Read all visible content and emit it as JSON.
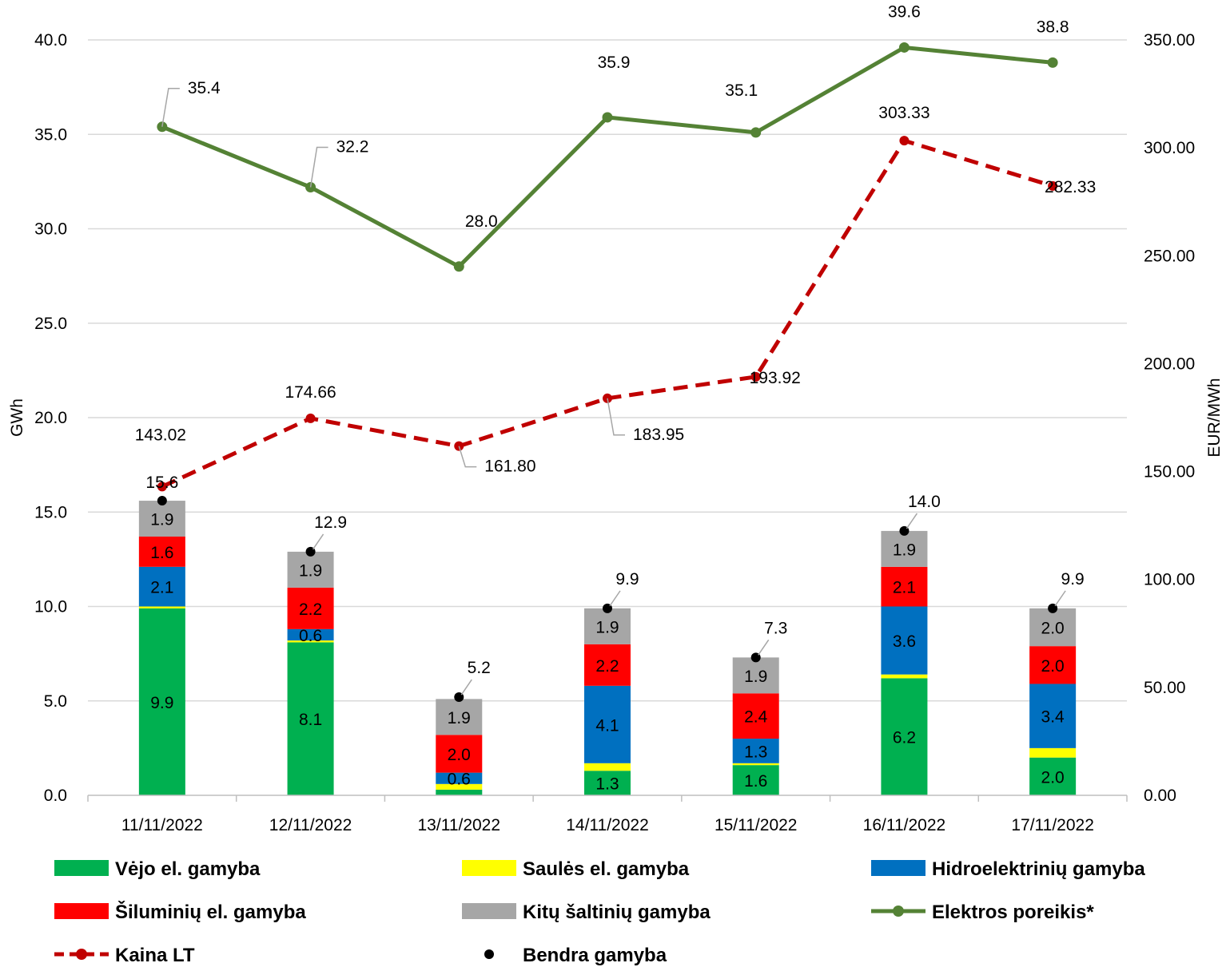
{
  "chart_data": {
    "type": "bar",
    "stacked": true,
    "categories": [
      "11/11/2022",
      "12/11/2022",
      "13/11/2022",
      "14/11/2022",
      "15/11/2022",
      "16/11/2022",
      "17/11/2022"
    ],
    "ylabel_left": "GWh",
    "ylabel_right": "EUR/MWh",
    "ylim_left": [
      0,
      40
    ],
    "ylim_right": [
      0,
      350
    ],
    "yticks_left": [
      "0.0",
      "5.0",
      "10.0",
      "15.0",
      "20.0",
      "25.0",
      "30.0",
      "35.0",
      "40.0"
    ],
    "yticks_right": [
      "0.00",
      "50.00",
      "100.00",
      "150.00",
      "200.00",
      "250.00",
      "300.00",
      "350.00"
    ],
    "grid": true,
    "legend_position": "bottom",
    "series": [
      {
        "name": "Vėjo el. gamyba",
        "kind": "bar",
        "color": "#00b050",
        "values": [
          9.9,
          8.1,
          0.3,
          1.3,
          1.6,
          6.2,
          2.0
        ],
        "labels": [
          "9.9",
          "8.1",
          "",
          "1.3",
          "1.6",
          "6.2",
          "2.0"
        ]
      },
      {
        "name": "Saulės el. gamyba",
        "kind": "bar",
        "color": "#ffff00",
        "values": [
          0.1,
          0.1,
          0.3,
          0.4,
          0.1,
          0.2,
          0.5
        ],
        "labels": [
          "",
          "",
          "",
          "",
          "",
          "",
          ""
        ]
      },
      {
        "name": "Hidroelektrinių gamyba",
        "kind": "bar",
        "color": "#0070c0",
        "values": [
          2.1,
          0.6,
          0.6,
          4.1,
          1.3,
          3.6,
          3.4
        ],
        "labels": [
          "2.1",
          "0.6",
          "0.6",
          "4.1",
          "1.3",
          "3.6",
          "3.4"
        ]
      },
      {
        "name": "Šiluminių el. gamyba",
        "kind": "bar",
        "color": "#ff0000",
        "values": [
          1.6,
          2.2,
          2.0,
          2.2,
          2.4,
          2.1,
          2.0
        ],
        "labels": [
          "1.6",
          "2.2",
          "2.0",
          "2.2",
          "2.4",
          "2.1",
          "2.0"
        ]
      },
      {
        "name": "Kitų  šaltinių gamyba",
        "kind": "bar",
        "color": "#a6a6a6",
        "values": [
          1.9,
          1.9,
          1.9,
          1.9,
          1.9,
          1.9,
          2.0
        ],
        "labels": [
          "1.9",
          "1.9",
          "1.9",
          "1.9",
          "1.9",
          "1.9",
          "2.0"
        ]
      },
      {
        "name": "Elektros poreikis*",
        "kind": "line",
        "axis": "left",
        "color": "#548235",
        "values": [
          35.4,
          32.2,
          28.0,
          35.9,
          35.1,
          39.6,
          38.8
        ],
        "labels": [
          "35.4",
          "32.2",
          "28.0",
          "35.9",
          "35.1",
          "39.6",
          "38.8"
        ]
      },
      {
        "name": "Kaina LT",
        "kind": "line",
        "axis": "right",
        "color": "#c00000",
        "dashed": true,
        "values": [
          143.02,
          174.66,
          161.8,
          183.95,
          193.92,
          303.33,
          282.33
        ],
        "labels": [
          "143.02",
          "174.66",
          "161.80",
          "183.95",
          "193.92",
          "303.33",
          "282.33"
        ]
      },
      {
        "name": "Bendra gamyba",
        "kind": "scatter",
        "axis": "left",
        "color": "#000000",
        "values": [
          15.6,
          12.9,
          5.2,
          9.9,
          7.3,
          14.0,
          9.9
        ],
        "labels": [
          "15.6",
          "12.9",
          "5.2",
          "9.9",
          "7.3",
          "14.0",
          "9.9"
        ]
      }
    ]
  }
}
